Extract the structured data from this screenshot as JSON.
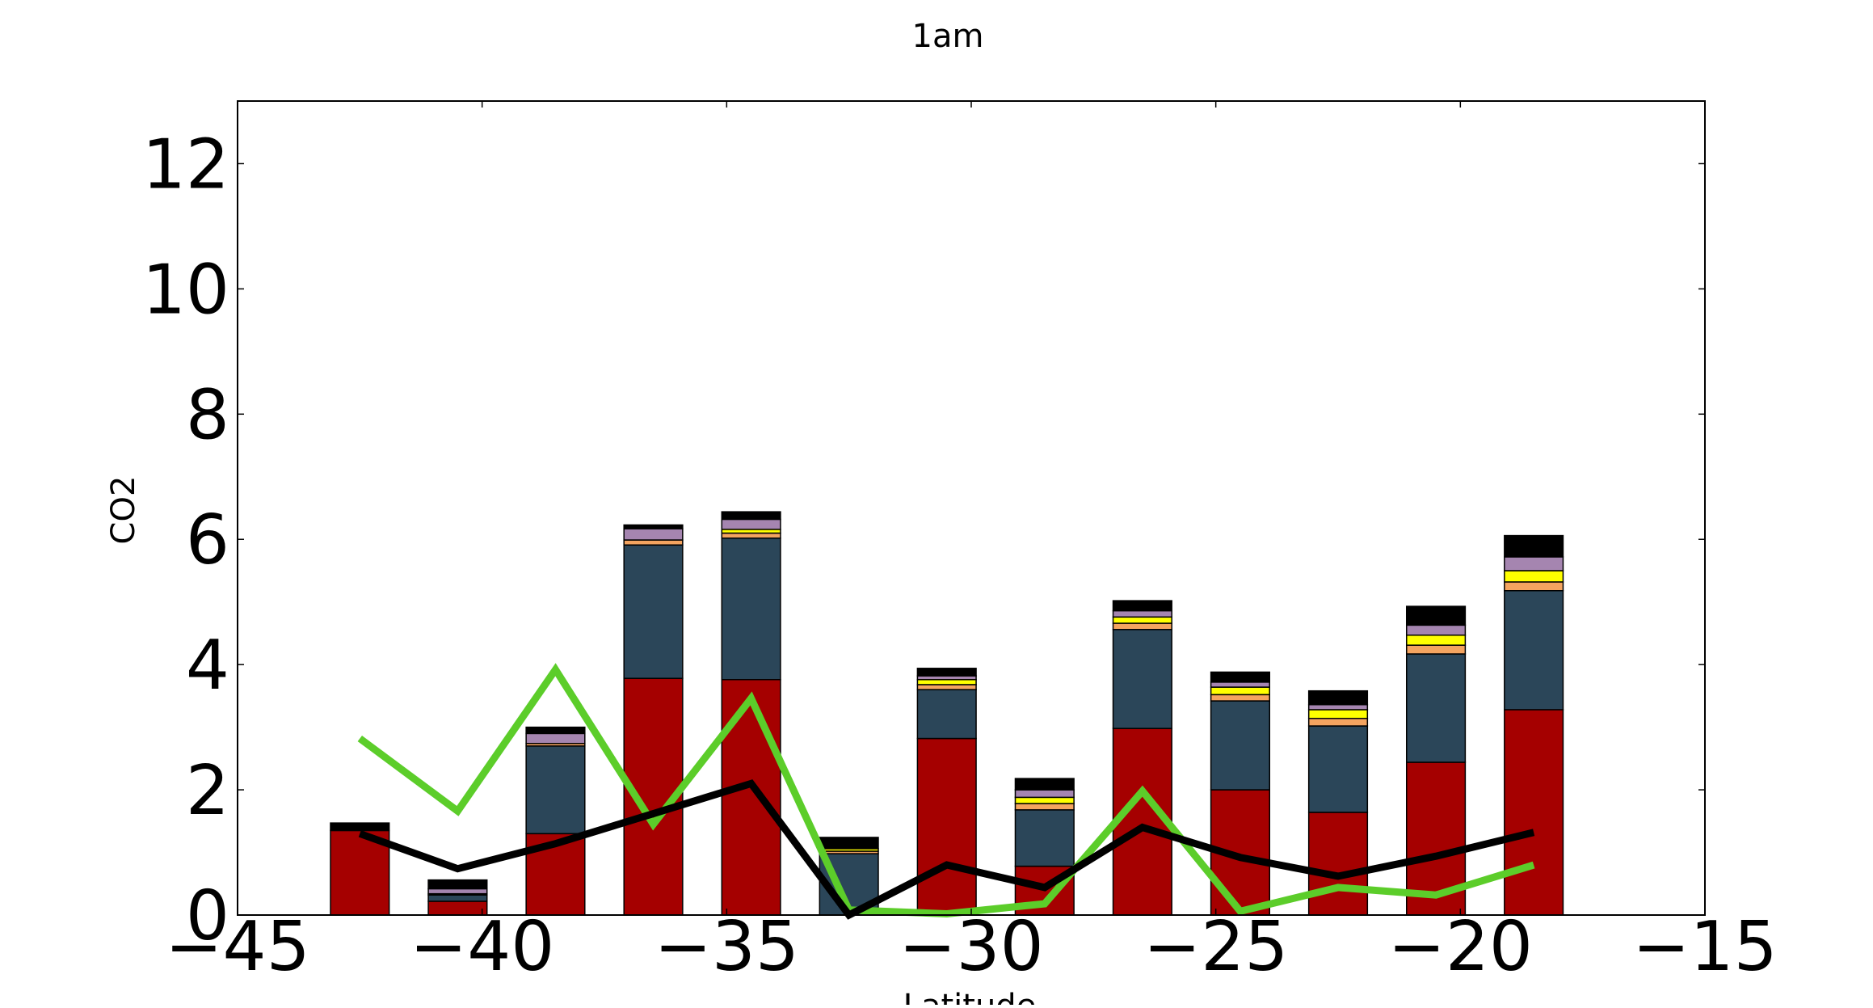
{
  "chart_data": {
    "type": "bar",
    "title": "1am",
    "xlabel": "Latitude",
    "ylabel": "CO2",
    "xlim": [
      -45,
      -15
    ],
    "ylim": [
      0,
      13
    ],
    "xticks": [
      "−45",
      "−40",
      "−35",
      "−30",
      "−25",
      "−20",
      "−15"
    ],
    "xtick_values": [
      -45,
      -40,
      -35,
      -30,
      -25,
      -20,
      -15
    ],
    "yticks": [
      "0",
      "2",
      "4",
      "6",
      "8",
      "10",
      "12"
    ],
    "ytick_values": [
      0,
      2,
      4,
      6,
      8,
      10,
      12
    ],
    "grid": false,
    "legend": "none",
    "bar_x": [
      -42.5,
      -40.5,
      -38.5,
      -36.5,
      -34.5,
      -32.5,
      -30.5,
      -28.5,
      -26.5,
      -24.5,
      -22.5,
      -20.5,
      -18.5
    ],
    "bar_width": 1.2,
    "stacked_series": [
      {
        "color": "#a50000",
        "values": [
          1.35,
          0.22,
          1.3,
          3.78,
          3.76,
          0.0,
          2.82,
          0.78,
          2.98,
          2.0,
          1.64,
          2.44,
          3.28
        ]
      },
      {
        "color": "#2b4659",
        "values": [
          0.0,
          0.1,
          1.4,
          2.13,
          2.26,
          0.98,
          0.78,
          0.9,
          1.58,
          1.42,
          1.38,
          1.73,
          1.9
        ]
      },
      {
        "color": "#f4a460",
        "values": [
          0.0,
          0.02,
          0.04,
          0.08,
          0.08,
          0.04,
          0.08,
          0.1,
          0.1,
          0.1,
          0.12,
          0.14,
          0.14
        ]
      },
      {
        "color": "#ffff00",
        "values": [
          0.0,
          0.0,
          0.0,
          0.0,
          0.06,
          0.04,
          0.08,
          0.1,
          0.1,
          0.12,
          0.14,
          0.16,
          0.18
        ]
      },
      {
        "color": "#a585b0",
        "values": [
          0.0,
          0.08,
          0.16,
          0.18,
          0.16,
          0.0,
          0.06,
          0.12,
          0.1,
          0.08,
          0.08,
          0.16,
          0.22
        ]
      },
      {
        "color": "#000000",
        "values": [
          0.12,
          0.14,
          0.1,
          0.06,
          0.12,
          0.18,
          0.12,
          0.18,
          0.16,
          0.16,
          0.22,
          0.3,
          0.34
        ]
      }
    ],
    "line_series": [
      {
        "color": "#5ccd2a",
        "x": [
          -42.5,
          -40.5,
          -38.5,
          -36.5,
          -34.5,
          -32.5,
          -30.5,
          -28.5,
          -26.5,
          -24.5,
          -22.5,
          -20.5,
          -18.5
        ],
        "values": [
          2.82,
          1.66,
          3.92,
          1.45,
          3.46,
          0.08,
          0.02,
          0.18,
          1.98,
          0.06,
          0.44,
          0.32,
          0.8
        ]
      },
      {
        "color": "#000000",
        "x": [
          -42.5,
          -40.5,
          -38.5,
          -36.5,
          -34.5,
          -32.5,
          -30.5,
          -28.5,
          -26.5,
          -24.5,
          -22.5,
          -20.5,
          -18.5
        ],
        "values": [
          1.3,
          0.74,
          1.14,
          1.62,
          2.1,
          0.0,
          0.8,
          0.44,
          1.4,
          0.92,
          0.62,
          0.94,
          1.32
        ]
      }
    ]
  }
}
